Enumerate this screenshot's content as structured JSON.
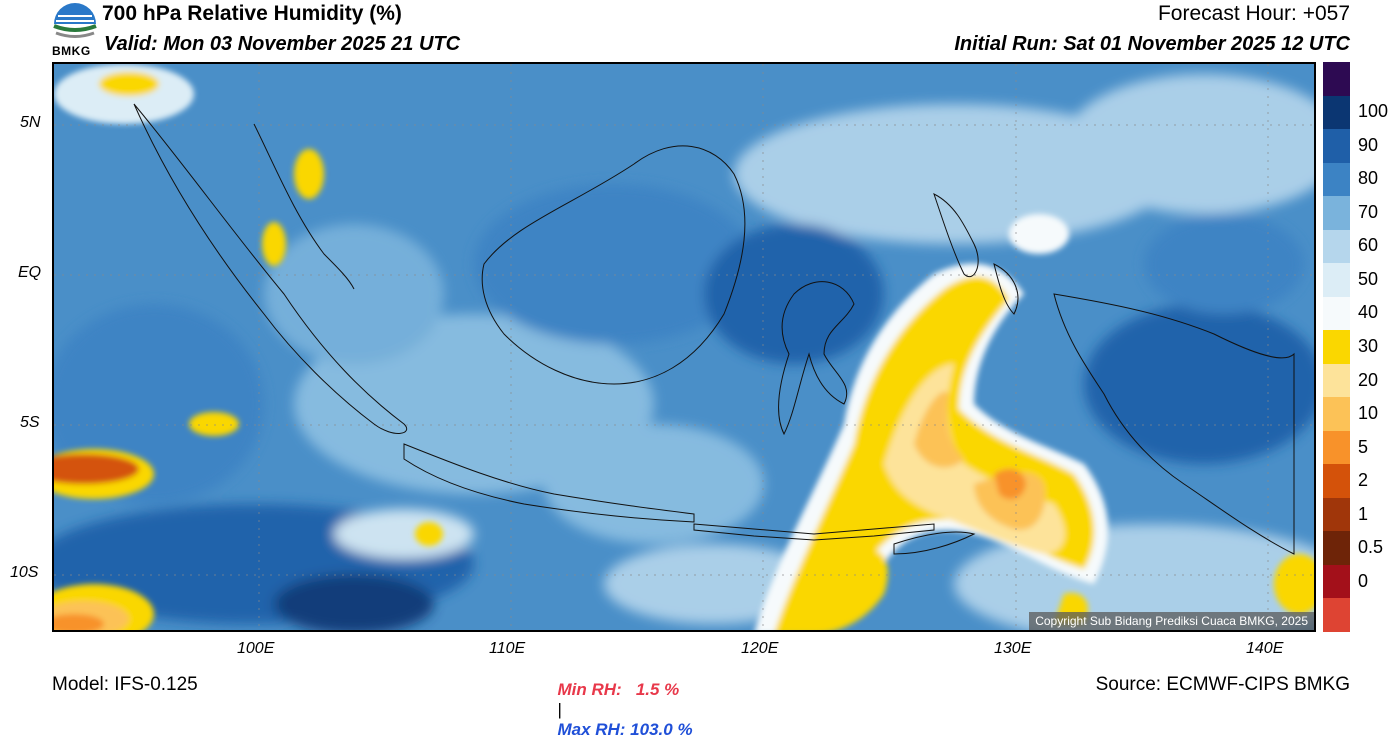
{
  "header": {
    "title": "700 hPa Relative Humidity (%)",
    "valid": "Valid: Mon 03 November 2025 21 UTC",
    "forecast_hour": "Forecast Hour: +057",
    "initial_run": "Initial Run: Sat 01 November 2025 12 UTC"
  },
  "logo": {
    "text": "BMKG"
  },
  "axes": {
    "lat_labels": [
      "5N",
      "EQ",
      "5S",
      "10S"
    ],
    "lon_labels": [
      "100E",
      "110E",
      "120E",
      "130E",
      "140E"
    ]
  },
  "colorbar": {
    "labels": [
      "100",
      "90",
      "80",
      "70",
      "60",
      "50",
      "40",
      "30",
      "20",
      "10",
      "5",
      "2",
      "1",
      "0.5",
      "0"
    ],
    "colors": [
      "#2d0a52",
      "#0b3672",
      "#1f5fa8",
      "#3c83c4",
      "#7ab3dc",
      "#b5d6ec",
      "#dcedf6",
      "#f6fafc",
      "#fad700",
      "#fde39a",
      "#fcc257",
      "#f8922a",
      "#d4520a",
      "#a0360a",
      "#6e2408",
      "#a3101a",
      "#de4433"
    ]
  },
  "footer": {
    "model": "Model: IFS-0.125",
    "min_rh": "Min RH:   1.5 %",
    "separator": "|",
    "max_rh": "Max RH: 103.0 %",
    "source": "Source: ECMWF-CIPS BMKG"
  },
  "copyright": "Copyright Sub Bidang Prediksi Cuaca BMKG, 2025",
  "colors": {
    "min_rh": "#e8384a",
    "max_rh": "#2050d8"
  }
}
